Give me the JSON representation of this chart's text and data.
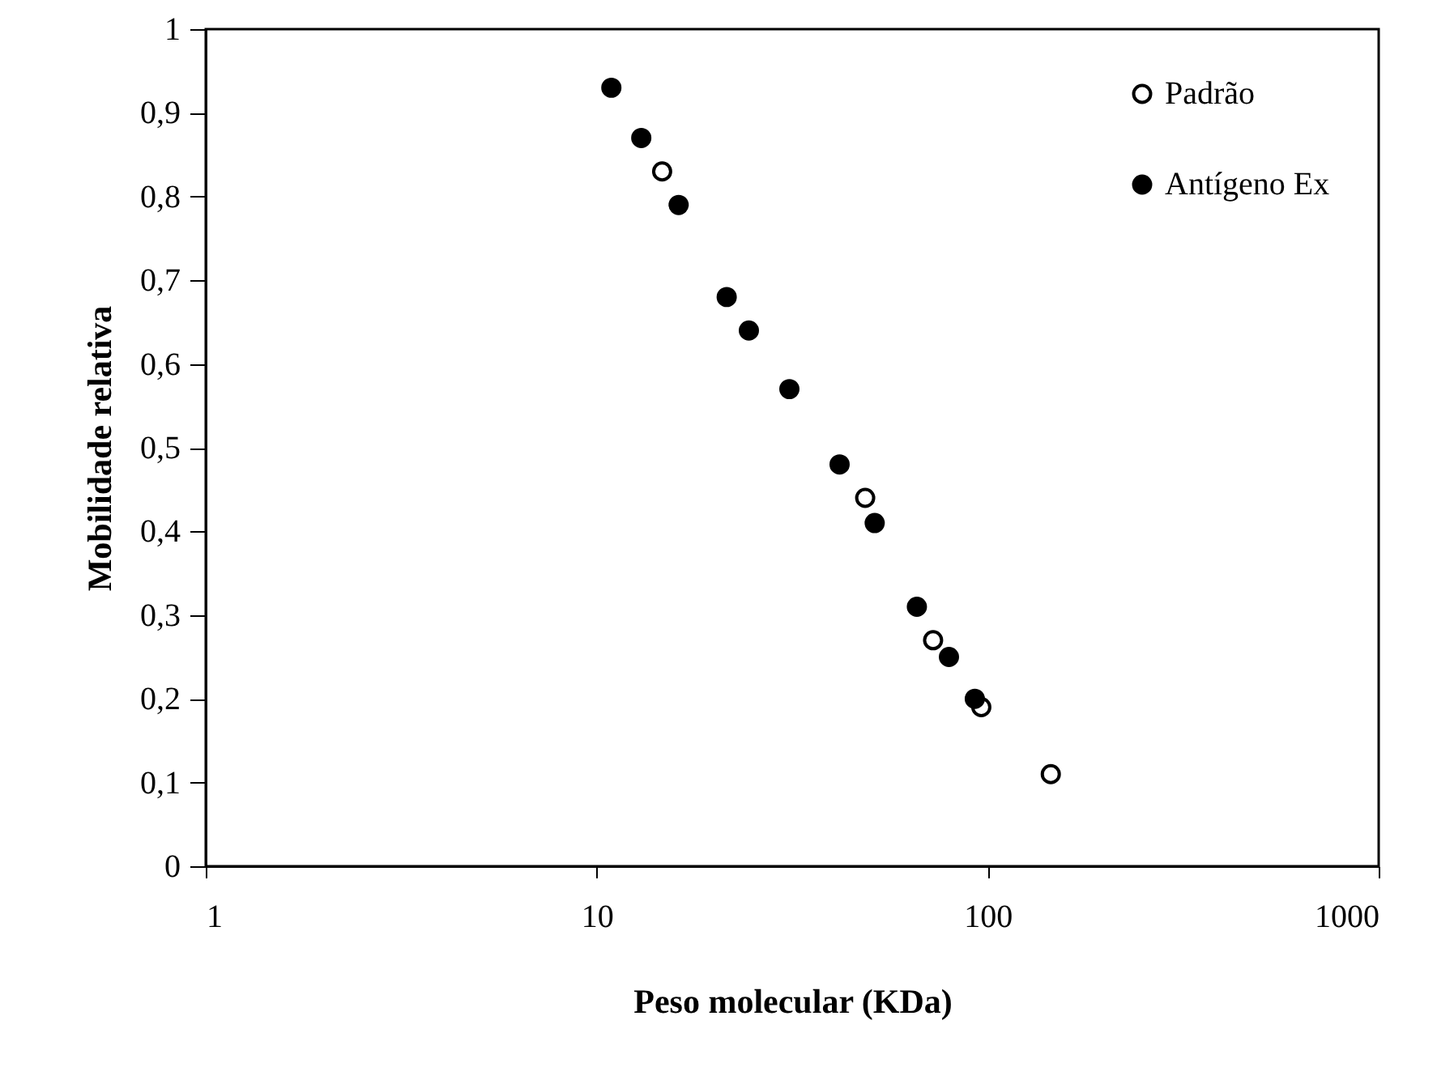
{
  "chart_data": {
    "type": "scatter",
    "xlabel": "Peso molecular (KDa)",
    "ylabel": "Mobilidade relativa",
    "log": "x",
    "grid": false,
    "legend": "top right",
    "marker": "circle",
    "xlim": [
      1,
      1000
    ],
    "xticks": [
      1,
      10,
      100,
      1000
    ],
    "ylim": [
      0,
      1
    ],
    "yticks": [
      0,
      {
        "value": 0.1,
        "label": "0,1"
      },
      {
        "value": 0.2,
        "label": "0,2"
      },
      {
        "value": 0.3,
        "label": "0,3"
      },
      {
        "value": 0.4,
        "label": "0,4"
      },
      {
        "value": 0.5,
        "label": "0,5"
      },
      {
        "value": 0.6,
        "label": "0,6"
      },
      {
        "value": 0.7,
        "label": "0,7"
      },
      {
        "value": 0.8,
        "label": "0,8"
      },
      {
        "value": 0.9,
        "label": "0,9"
      },
      1
    ],
    "series": [
      {
        "name": "Padrão",
        "color": "#ffffff",
        "x": [
          14.7,
          48.6,
          72.5,
          96.3,
          145
        ],
        "values": [
          0.83,
          0.44,
          0.27,
          0.19,
          0.11
        ]
      },
      {
        "name": "Antígeno Ex",
        "color": "#000000",
        "x": [
          10.9,
          13,
          16.2,
          21.5,
          24.5,
          31.1,
          41.8,
          51.4,
          65.9,
          79.6,
          92.7
        ],
        "values": [
          0.93,
          0.87,
          0.79,
          0.68,
          0.64,
          0.57,
          0.48,
          0.41,
          0.31,
          0.25,
          0.2
        ]
      }
    ]
  }
}
